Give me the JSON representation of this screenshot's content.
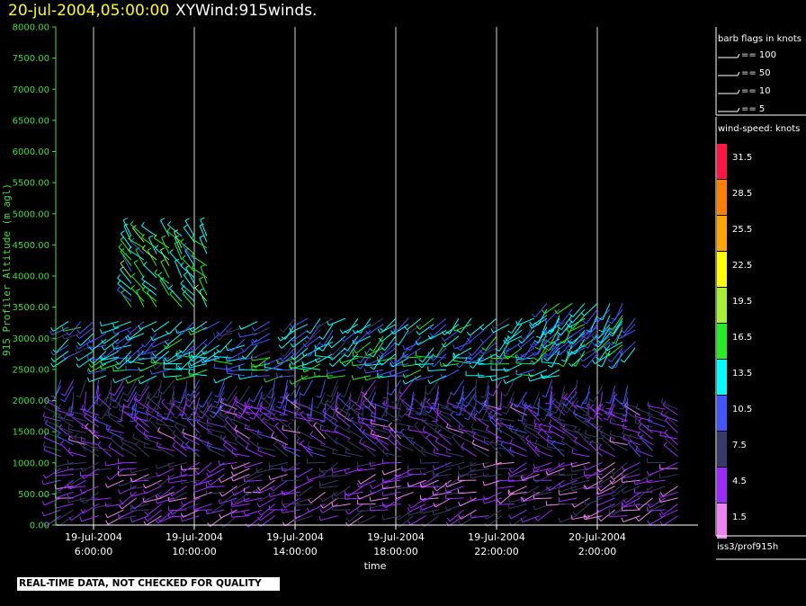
{
  "title": {
    "time": "20-jul-2004,05:00:00",
    "text": "XYWind:915winds."
  },
  "notice": "REAL-TIME DATA, NOT CHECKED FOR QUALITY",
  "chart_data": {
    "type": "scatter",
    "title": "XYWind:915winds.",
    "xlabel": "time",
    "ylabel": "915 Profiler Altitude (m agl)",
    "ylim": [
      0,
      8000
    ],
    "y_ticks": [
      "0.00",
      "500.00",
      "1000.00",
      "1500.00",
      "2000.00",
      "2500.00",
      "3000.00",
      "3500.00",
      "4000.00",
      "4500.00",
      "5000.00",
      "5500.00",
      "6000.00",
      "6500.00",
      "7000.00",
      "7500.00",
      "8000.00"
    ],
    "x_range_hours": [
      4.5,
      30
    ],
    "x_ticks": [
      {
        "hour": 6,
        "date": "19-Jul-2004",
        "time": "6:00:00"
      },
      {
        "hour": 10,
        "date": "19-Jul-2004",
        "time": "10:00:00"
      },
      {
        "hour": 14,
        "date": "19-Jul-2004",
        "time": "14:00:00"
      },
      {
        "hour": 18,
        "date": "19-Jul-2004",
        "time": "18:00:00"
      },
      {
        "hour": 22,
        "date": "19-Jul-2004",
        "time": "22:00:00"
      },
      {
        "hour": 26,
        "date": "20-Jul-2004",
        "time": "2:00:00"
      }
    ],
    "grid": "vertical",
    "legend_placement": "right",
    "barb_legend": {
      "title": "barb flags in knots",
      "items": [
        "== 100",
        "== 50",
        "== 10",
        "== 5"
      ]
    },
    "color_legend": {
      "title": "wind-speed: knots",
      "bins": [
        {
          "label": "31.5",
          "color": "#ff1744"
        },
        {
          "label": "28.5",
          "color": "#ff7f00"
        },
        {
          "label": "25.5",
          "color": "#ffa500"
        },
        {
          "label": "22.5",
          "color": "#ffff00"
        },
        {
          "label": "19.5",
          "color": "#a8f032"
        },
        {
          "label": "16.5",
          "color": "#22ee22"
        },
        {
          "label": "13.5",
          "color": "#00ffff"
        },
        {
          "label": "10.5",
          "color": "#4455ff"
        },
        {
          "label": "7.5",
          "color": "#3a3a6a"
        },
        {
          "label": "4.5",
          "color": "#9b2bff"
        },
        {
          "label": "1.5",
          "color": "#ee82ee"
        }
      ]
    },
    "source_label": "iss3/prof915h",
    "wind_bands": [
      {
        "from_hour": 4.7,
        "to_hour": 29.5,
        "from_alt": 150,
        "to_alt": 1050,
        "knots": 5,
        "dir": 250
      },
      {
        "from_hour": 4.7,
        "to_hour": 29.5,
        "from_alt": 1100,
        "to_alt": 1900,
        "knots": 6,
        "dir": 300
      },
      {
        "from_hour": 4.7,
        "to_hour": 27.5,
        "from_alt": 1950,
        "to_alt": 2350,
        "knots": 8,
        "dir": 200
      },
      {
        "from_hour": 6.5,
        "to_hour": 24.5,
        "from_alt": 2400,
        "to_alt": 2700,
        "knots": 14,
        "dir": 260
      },
      {
        "from_hour": 5,
        "to_hour": 13,
        "from_alt": 2700,
        "to_alt": 3300,
        "knots": 12,
        "dir": 240
      },
      {
        "from_hour": 14,
        "to_hour": 27.5,
        "from_alt": 2750,
        "to_alt": 3350,
        "knots": 12,
        "dir": 230
      },
      {
        "from_hour": 7.5,
        "to_hour": 10.5,
        "from_alt": 3500,
        "to_alt": 4700,
        "knots": 15,
        "dir": 320
      },
      {
        "from_hour": 24,
        "to_hour": 27,
        "from_alt": 2800,
        "to_alt": 3600,
        "knots": 13,
        "dir": 220
      }
    ]
  }
}
